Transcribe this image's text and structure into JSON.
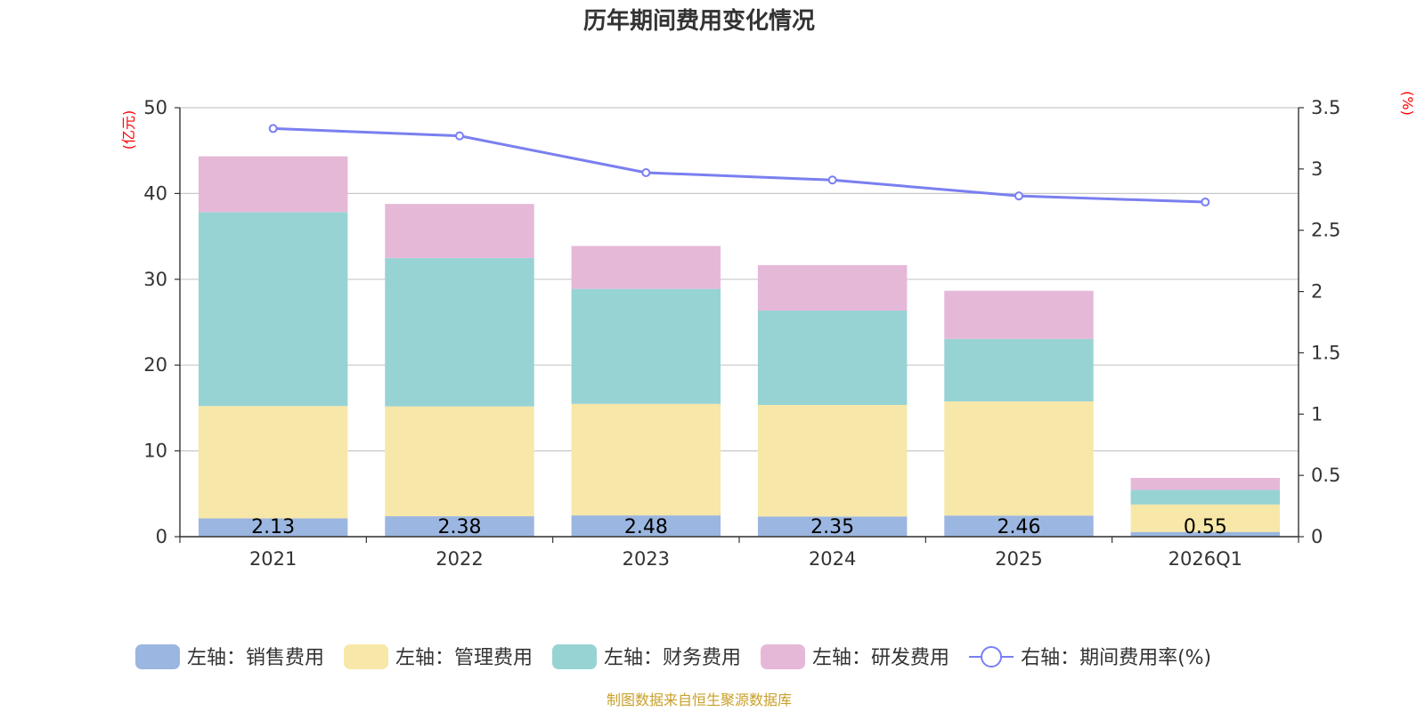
{
  "title": "历年期间费用变化情况",
  "source": "制图数据来自恒生聚源数据库",
  "chart_data": {
    "type": "bar",
    "stacked": true,
    "categories": [
      "2021",
      "2022",
      "2023",
      "2024",
      "2025",
      "2026Q1"
    ],
    "left_axis": {
      "unit": "(亿元)",
      "ylim": [
        0,
        50
      ],
      "ticks": [
        "0",
        "10",
        "20",
        "30",
        "40",
        "50"
      ]
    },
    "right_axis": {
      "unit": "(%)",
      "ylim": [
        0,
        3.5
      ],
      "ticks": [
        "0",
        "0.5",
        "1",
        "1.5",
        "2",
        "2.5",
        "3",
        "3.5"
      ]
    },
    "series": [
      {
        "name": "左轴：销售费用",
        "color": "#9bb6e0",
        "axis": "left",
        "values": [
          2.13,
          2.38,
          2.48,
          2.35,
          2.46,
          0.55
        ],
        "data_labels": [
          "2.13",
          "2.38",
          "2.48",
          "2.35",
          "2.46",
          "0.55"
        ]
      },
      {
        "name": "左轴：管理费用",
        "color": "#f7e7a8",
        "axis": "left",
        "values": [
          13.1,
          12.8,
          13.0,
          13.0,
          13.3,
          3.2
        ]
      },
      {
        "name": "左轴：财务费用",
        "color": "#98d3d4",
        "axis": "left",
        "values": [
          22.6,
          17.3,
          13.4,
          11.0,
          7.3,
          1.7
        ]
      },
      {
        "name": "左轴：研发费用",
        "color": "#e6b8d8",
        "axis": "left",
        "values": [
          6.5,
          6.3,
          5.0,
          5.3,
          5.6,
          1.4
        ]
      }
    ],
    "line_series": {
      "name": "右轴：期间费用率(%)",
      "color": "#7a7ff0",
      "axis": "right",
      "values": [
        3.33,
        3.27,
        2.97,
        2.91,
        2.78,
        2.73
      ]
    }
  }
}
